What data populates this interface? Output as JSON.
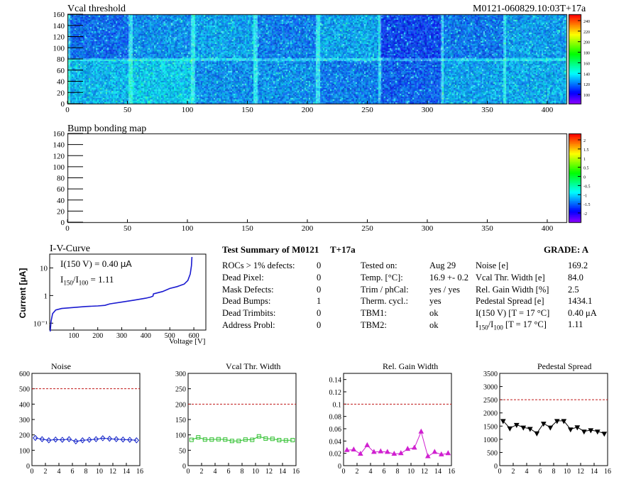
{
  "vcal_map": {
    "title": "Vcal threshold",
    "module_label": "M0121-060829.10:03T+17a",
    "x_ticks": [
      "0",
      "50",
      "100",
      "150",
      "200",
      "250",
      "300",
      "350",
      "400"
    ],
    "y_ticks": [
      "0",
      "20",
      "40",
      "60",
      "80",
      "100",
      "120",
      "140",
      "160"
    ],
    "z_ticks": [
      "100",
      "120",
      "140",
      "160",
      "180",
      "200",
      "220",
      "240"
    ]
  },
  "bump_map": {
    "title": "Bump bonding map",
    "x_ticks": [
      "0",
      "50",
      "100",
      "150",
      "200",
      "250",
      "300",
      "350",
      "400"
    ],
    "y_ticks": [
      "0",
      "20",
      "40",
      "60",
      "80",
      "100",
      "120",
      "140",
      "160"
    ],
    "z_ticks": [
      "-2",
      "-1.5",
      "-1",
      "-0.5",
      "0",
      "0.5",
      "1",
      "1.5",
      "2"
    ]
  },
  "iv": {
    "title": "I-V-Curve",
    "ylabel_main": "Current [",
    "ylabel_unit": "μA",
    "ylabel_end": "]",
    "xlabel": "Voltage [V]",
    "x_ticks": [
      "100",
      "200",
      "300",
      "400",
      "500",
      "600"
    ],
    "y_ticks": [
      "10⁻¹",
      "1",
      "10"
    ],
    "ann1_prefix": "I(150 V) = 0.40 ",
    "ann1_unit": "μA",
    "ann2_a": "I",
    "ann2_sub1": "150",
    "ann2_b": "/I",
    "ann2_sub2": "100",
    "ann2_c": " =  1.11"
  },
  "summary": {
    "title": "Test Summary of M0121",
    "temp_tag": "T+17a",
    "grade": "GRADE:  A",
    "left": [
      {
        "label": "ROCs > 1% defects:",
        "value": "0"
      },
      {
        "label": "Dead Pixel:",
        "value": "0"
      },
      {
        "label": "Mask Defects:",
        "value": "0"
      },
      {
        "label": "Dead Bumps:",
        "value": "1"
      },
      {
        "label": "Dead Trimbits:",
        "value": "0"
      },
      {
        "label": "Address Probl:",
        "value": "0"
      }
    ],
    "mid": [
      {
        "label": "Tested on:",
        "value": "Aug 29"
      },
      {
        "label": "Temp. [°C]:",
        "value": "16.9 +- 0.2"
      },
      {
        "label": "Trim / phCal:",
        "value": "yes / yes"
      },
      {
        "label": "Therm. cycl.:",
        "value": "yes"
      },
      {
        "label": "TBM1:",
        "value": "ok"
      },
      {
        "label": "TBM2:",
        "value": "ok"
      }
    ],
    "right": [
      {
        "label": "Noise [e]",
        "value": "169.2"
      },
      {
        "label": "Vcal Thr. Width [e]",
        "value": "84.0"
      },
      {
        "label": "Rel. Gain Width [%]",
        "value": "2.5"
      },
      {
        "label": "Pedestal Spread [e]",
        "value": "1434.1"
      },
      {
        "label": "I(150 V) [T = 17 °C]",
        "value": "0.40 μA"
      }
    ],
    "last_a": "I",
    "last_sub1": "150",
    "last_b": "/I",
    "last_sub2": "100",
    "last_c": "  [T = 17 °C]",
    "last_value": "1.11"
  },
  "chart_data": [
    {
      "type": "line",
      "title": "Noise",
      "x": [
        0,
        1,
        2,
        3,
        4,
        5,
        6,
        7,
        8,
        9,
        10,
        11,
        12,
        13,
        14,
        15
      ],
      "values": [
        180,
        172,
        165,
        170,
        168,
        172,
        158,
        165,
        168,
        172,
        178,
        175,
        172,
        170,
        168,
        165
      ],
      "ylim": [
        0,
        600
      ],
      "y_ticks": [
        0,
        100,
        200,
        300,
        400,
        500,
        600
      ],
      "x_ticks": [
        0,
        2,
        4,
        6,
        8,
        10,
        12,
        14,
        16
      ],
      "xlim": [
        0,
        16
      ],
      "limit_line": 500,
      "color": "#1020c8",
      "marker": "diamond"
    },
    {
      "type": "line",
      "title": "Vcal Thr. Width",
      "x": [
        0,
        1,
        2,
        3,
        4,
        5,
        6,
        7,
        8,
        9,
        10,
        11,
        12,
        13,
        14,
        15
      ],
      "values": [
        84,
        92,
        85,
        85,
        86,
        85,
        80,
        80,
        85,
        84,
        95,
        88,
        87,
        83,
        82,
        83
      ],
      "ylim": [
        0,
        300
      ],
      "y_ticks": [
        0,
        50,
        100,
        150,
        200,
        250,
        300
      ],
      "x_ticks": [
        0,
        2,
        4,
        6,
        8,
        10,
        12,
        14,
        16
      ],
      "xlim": [
        0,
        16
      ],
      "limit_line": 200,
      "color": "#30c030",
      "marker": "square"
    },
    {
      "type": "line",
      "title": "Rel. Gain Width",
      "x": [
        0,
        1,
        2,
        3,
        4,
        5,
        6,
        7,
        8,
        9,
        10,
        11,
        12,
        13,
        14,
        15
      ],
      "values": [
        0.025,
        0.026,
        0.019,
        0.033,
        0.022,
        0.023,
        0.022,
        0.019,
        0.02,
        0.027,
        0.029,
        0.055,
        0.015,
        0.022,
        0.018,
        0.02
      ],
      "ylim": [
        0,
        0.15
      ],
      "y_ticks": [
        0,
        0.02,
        0.04,
        0.06,
        0.08,
        0.1,
        0.12,
        0.14
      ],
      "x_ticks": [
        0,
        2,
        4,
        6,
        8,
        10,
        12,
        14,
        16
      ],
      "xlim": [
        0,
        16
      ],
      "limit_line": 0.1,
      "color": "#d020d0",
      "marker": "triangle"
    },
    {
      "type": "line",
      "title": "Pedestal Spread",
      "x": [
        0,
        1,
        2,
        3,
        4,
        5,
        6,
        7,
        8,
        9,
        10,
        11,
        12,
        13,
        14,
        15
      ],
      "values": [
        1700,
        1420,
        1550,
        1450,
        1400,
        1230,
        1600,
        1450,
        1700,
        1700,
        1380,
        1460,
        1300,
        1350,
        1300,
        1220
      ],
      "ylim": [
        0,
        3500
      ],
      "y_ticks": [
        0,
        500,
        1000,
        1500,
        2000,
        2500,
        3000,
        3500
      ],
      "x_ticks": [
        0,
        2,
        4,
        6,
        8,
        10,
        12,
        14,
        16
      ],
      "xlim": [
        0,
        16
      ],
      "limit_line": 2500,
      "color": "#000000",
      "marker": "triangle-down"
    }
  ]
}
